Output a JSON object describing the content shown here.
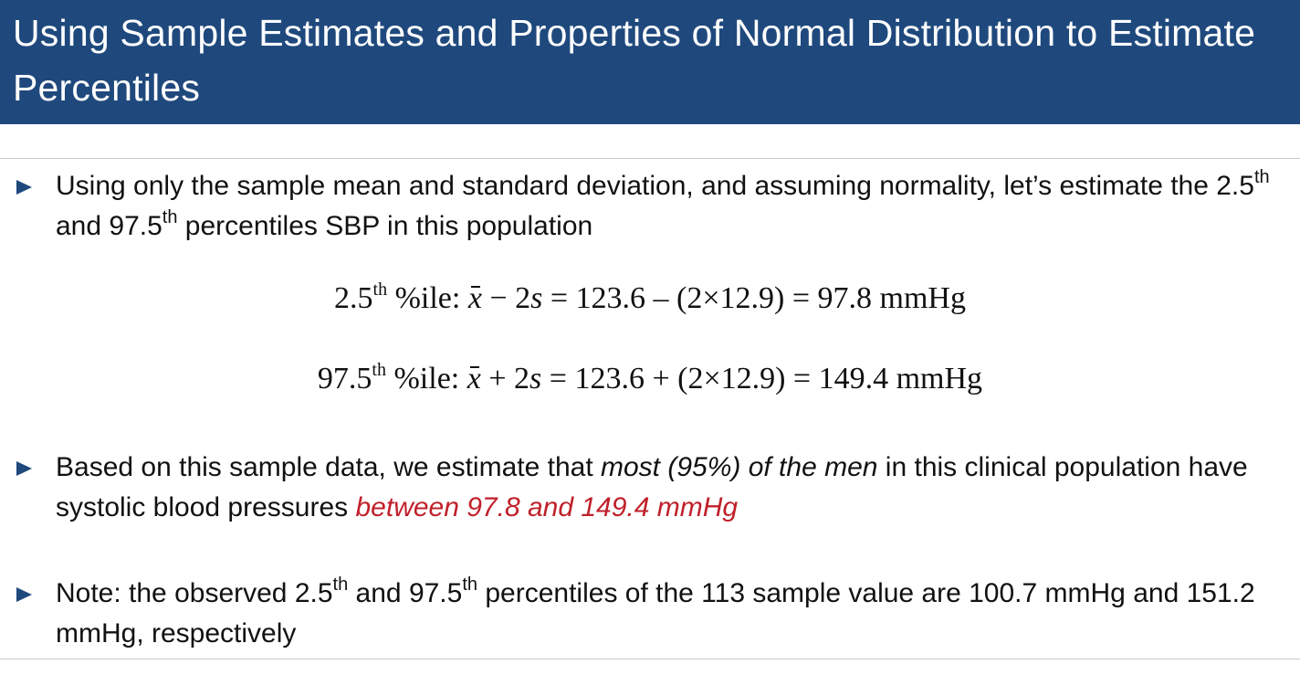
{
  "header": {
    "title": "Using Sample Estimates and Properties of Normal Distribution to Estimate Percentiles"
  },
  "bullet1": {
    "part1": "Using only the sample mean and standard deviation, and assuming normality, let’s estimate the 2.5",
    "sup1": "th",
    "part2": " and 97.5",
    "sup2": "th",
    "part3": " percentiles SBP in this population"
  },
  "equation1": {
    "lhs": "2.5",
    "sup": "th",
    "label": " %ile: ",
    "xbar": "x",
    "op": " − 2",
    "s": "s",
    "rhs": " = 123.6 – (2×12.9) = 97.8 mmHg"
  },
  "equation2": {
    "lhs": "97.5",
    "sup": "th",
    "label": " %ile: ",
    "xbar": "x",
    "op": " + 2",
    "s": "s",
    "rhs": " = 123.6 + (2×12.9) = 149.4 mmHg"
  },
  "bullet2": {
    "part1": "Based on this sample data, we estimate that ",
    "emphasis": "most (95%) of the men",
    "part2": " in this clinical population have systolic blood pressures ",
    "highlight": "between 97.8 and 149.4 mmHg"
  },
  "bullet3": {
    "part1": "Note: the observed 2.5",
    "sup1": "th",
    "part2": " and 97.5",
    "sup2": "th",
    "part3": " percentiles of the 113 sample value are 100.7 mmHg and 151.2 mmHg, respectively"
  },
  "colors": {
    "header_bg": "#1f497d",
    "bullet_marker": "#1f497d",
    "highlight": "#c0202a"
  }
}
